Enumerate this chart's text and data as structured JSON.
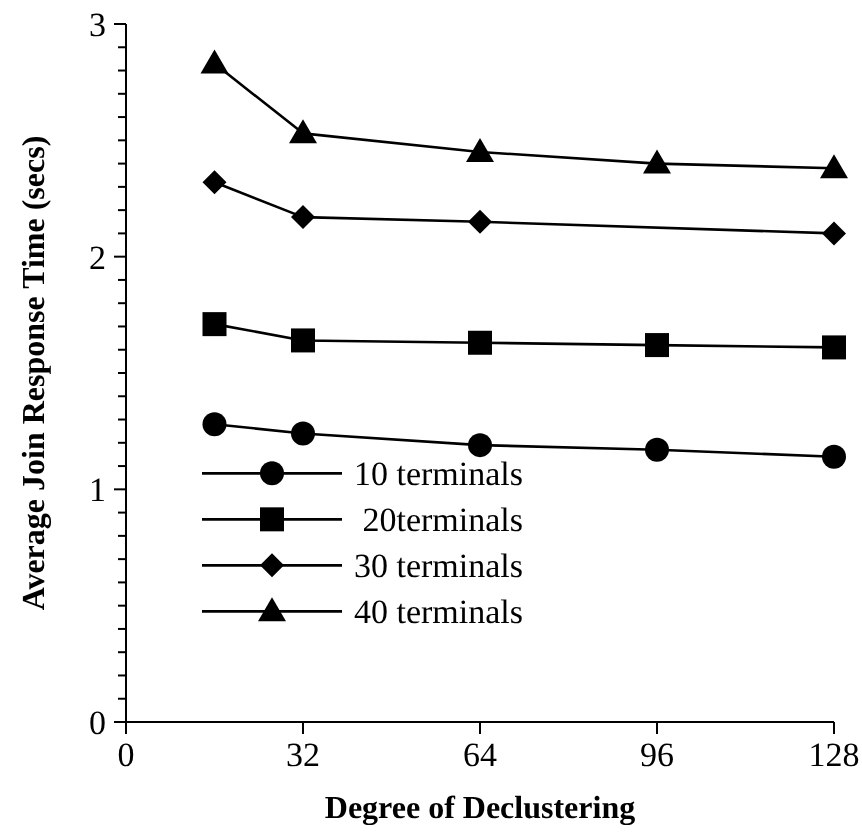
{
  "chart_data": {
    "type": "line",
    "xlabel": "Degree of Declustering",
    "ylabel": "Average Join Response Time (secs)",
    "xlim": [
      0,
      128
    ],
    "xticks": [
      0,
      32,
      64,
      96,
      128
    ],
    "ylim": [
      0,
      3
    ],
    "yticks": [
      0,
      {
        "value": 0.1,
        "label": null
      },
      {
        "value": 0.2,
        "label": null
      },
      {
        "value": 0.3,
        "label": null
      },
      {
        "value": 0.4,
        "label": null
      },
      {
        "value": 0.5,
        "label": null
      },
      {
        "value": 0.6,
        "label": null
      },
      {
        "value": 0.7,
        "label": null
      },
      {
        "value": 0.8,
        "label": null
      },
      {
        "value": 0.9,
        "label": null
      },
      1,
      {
        "value": 1.1,
        "label": null
      },
      {
        "value": 1.2,
        "label": null
      },
      {
        "value": 1.3,
        "label": null
      },
      {
        "value": 1.4,
        "label": null
      },
      {
        "value": 1.5,
        "label": null
      },
      {
        "value": 1.6,
        "label": null
      },
      {
        "value": 1.7,
        "label": null
      },
      {
        "value": 1.8,
        "label": null
      },
      {
        "value": 1.9,
        "label": null
      },
      2,
      {
        "value": 2.1,
        "label": null
      },
      {
        "value": 2.2,
        "label": null
      },
      {
        "value": 2.3,
        "label": null
      },
      {
        "value": 2.4,
        "label": null
      },
      {
        "value": 2.5,
        "label": null
      },
      {
        "value": 2.6,
        "label": null
      },
      {
        "value": 2.7,
        "label": null
      },
      {
        "value": 2.8,
        "label": null
      },
      {
        "value": 2.9,
        "label": null
      },
      3
    ],
    "legend": "bottom left",
    "grid": false,
    "series": [
      {
        "name": "10 terminals",
        "color": "#000000",
        "marker": "circle",
        "x": [
          16,
          32,
          64,
          96,
          128
        ],
        "values": [
          1.28,
          1.24,
          1.19,
          1.17,
          1.14
        ]
      },
      {
        "name": " 20terminals",
        "color": "#000000",
        "marker": "square",
        "x": [
          16,
          32,
          64,
          96,
          128
        ],
        "values": [
          1.71,
          1.64,
          1.63,
          1.62,
          1.61
        ]
      },
      {
        "name": "30 terminals",
        "color": "#000000",
        "marker": "diamond",
        "x": [
          16,
          32,
          64,
          128
        ],
        "values": [
          2.32,
          2.17,
          2.15,
          2.1
        ]
      },
      {
        "name": "40 terminals",
        "color": "#000000",
        "marker": "triangle",
        "x": [
          16,
          32,
          64,
          96,
          128
        ],
        "values": [
          2.83,
          2.53,
          2.45,
          2.4,
          2.38
        ]
      }
    ]
  }
}
